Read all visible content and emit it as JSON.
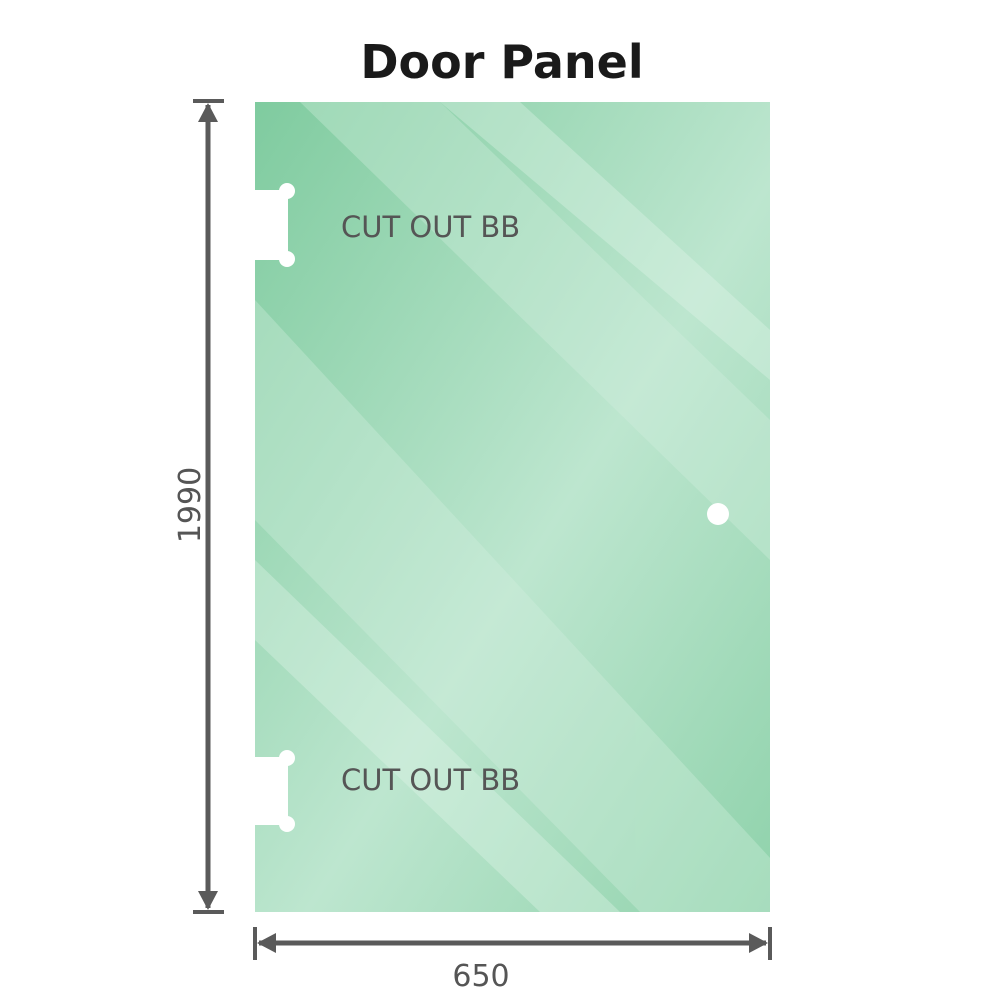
{
  "title": "Door Panel",
  "cutouts": [
    {
      "label": "CUT OUT BB"
    },
    {
      "label": "CUT OUT BB"
    }
  ],
  "dimensions": {
    "height": "1990",
    "width": "650"
  },
  "colors": {
    "glass": "#86cfa6",
    "glass_light": "#bde6cf",
    "dimension_line": "#5a5a5a"
  }
}
